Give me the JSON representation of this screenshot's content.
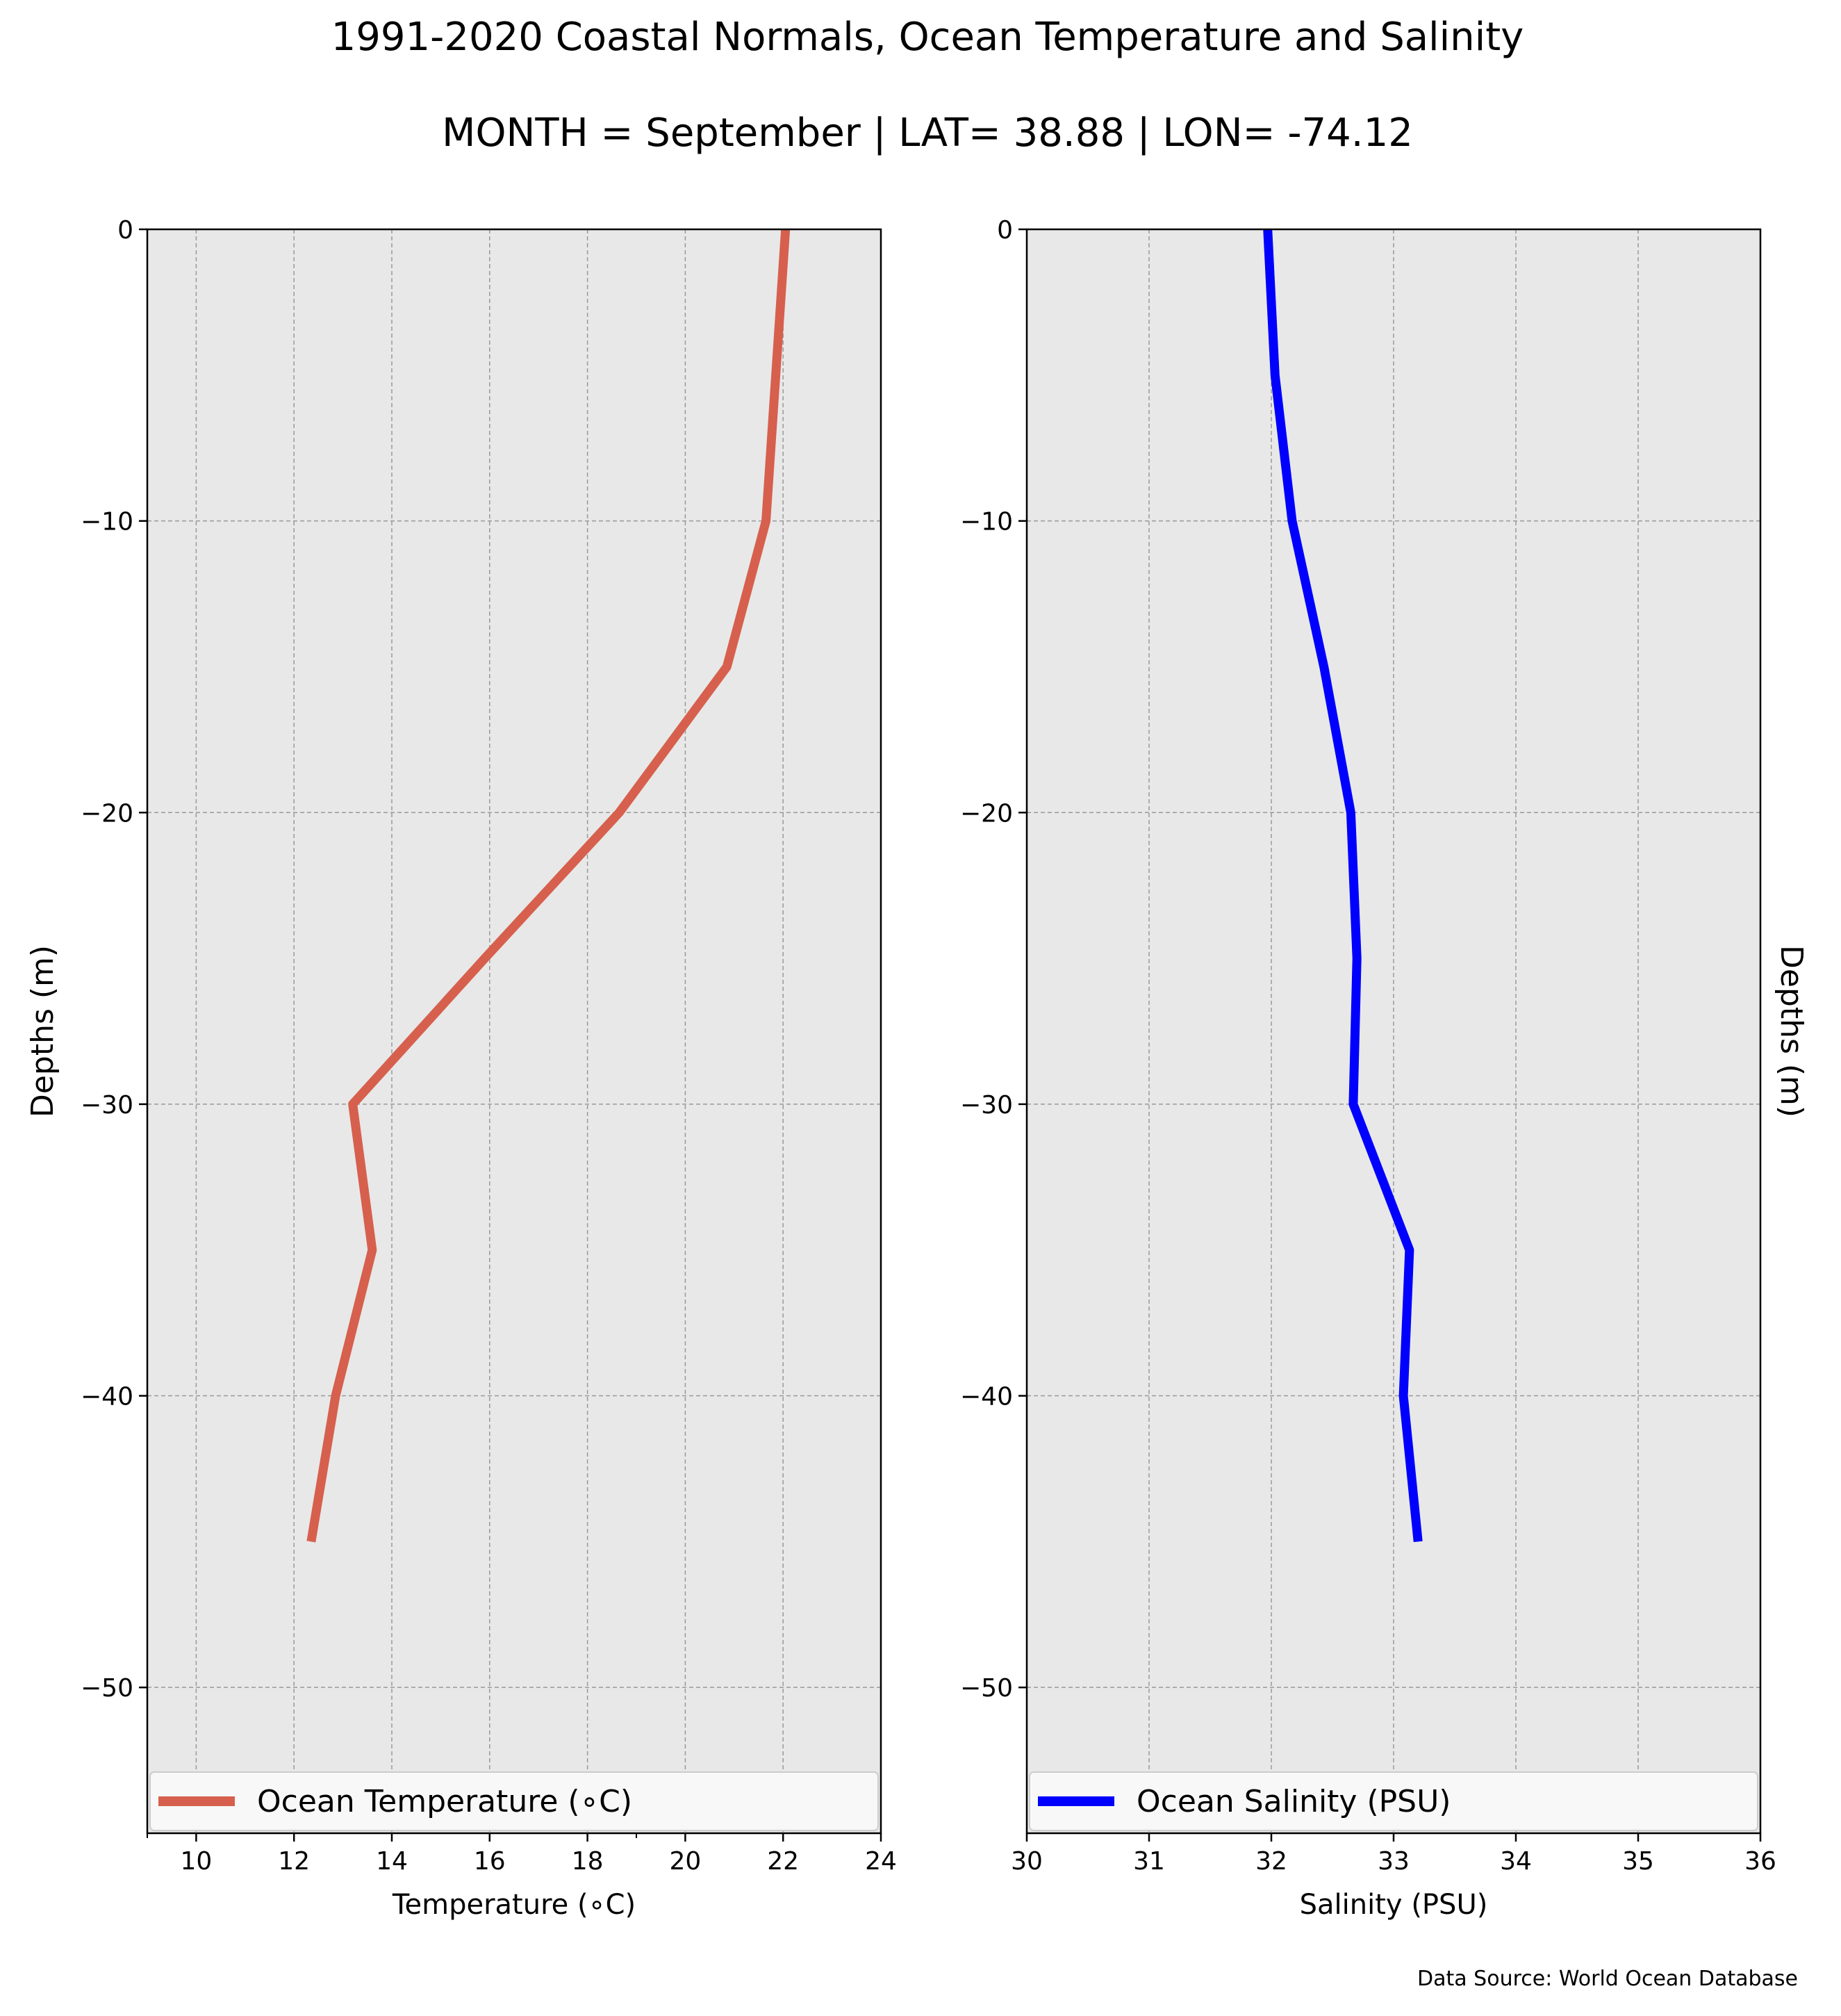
{
  "title": "1991-2020 Coastal Normals, Ocean Temperature and Salinity",
  "subtitle": "MONTH = September | LAT= 38.88 | LON= -74.12",
  "source_note": "Data Source: World Ocean Database",
  "colors": {
    "background": "#ffffff",
    "plot_bg": "#e8e8e8",
    "grid": "#999999",
    "temperature": "#d6604d",
    "salinity": "#0000ff"
  },
  "chart_data": [
    {
      "type": "line",
      "xlabel": "Temperature ($^\\circ$C)",
      "xlabel_display": "Temperature (∘C)",
      "ylabel": "Depths (m)",
      "xlim": [
        9,
        24
      ],
      "ylim": [
        -55,
        0
      ],
      "xticks": [
        10,
        12,
        14,
        16,
        18,
        20,
        22,
        24
      ],
      "xtick_labels": [
        "10",
        "12",
        "14",
        "16",
        "18",
        "20",
        "22",
        "24"
      ],
      "minor_xticks": [
        9,
        19
      ],
      "yticks": [
        0,
        -10,
        -20,
        -30,
        -40,
        -50
      ],
      "ytick_labels": [
        "0",
        "−10",
        "−20",
        "−30",
        "−40",
        "−50"
      ],
      "grid": true,
      "legend_position": "lower center",
      "series": [
        {
          "name": "Ocean Temperature (∘C)",
          "color": "#d6604d",
          "x": [
            22.05,
            21.85,
            21.65,
            20.85,
            18.65,
            15.9,
            13.2,
            13.6,
            12.85,
            12.35
          ],
          "y": [
            0,
            -5,
            -10,
            -15,
            -20,
            -25,
            -30,
            -35,
            -40,
            -45
          ]
        }
      ]
    },
    {
      "type": "line",
      "xlabel": "Salinity (PSU)",
      "ylabel": "Depths (m)",
      "xlim": [
        30,
        36
      ],
      "ylim": [
        -55,
        0
      ],
      "xticks": [
        30,
        31,
        32,
        33,
        34,
        35,
        36
      ],
      "xtick_labels": [
        "30",
        "31",
        "32",
        "33",
        "34",
        "35",
        "36"
      ],
      "yticks": [
        0,
        -10,
        -20,
        -30,
        -40,
        -50
      ],
      "ytick_labels": [
        "0",
        "−10",
        "−20",
        "−30",
        "−40",
        "−50"
      ],
      "grid": true,
      "legend_position": "lower center",
      "series": [
        {
          "name": "Ocean Salinity (PSU)",
          "color": "#0000ff",
          "x": [
            31.97,
            32.03,
            32.17,
            32.43,
            32.65,
            32.7,
            32.67,
            33.13,
            33.08,
            33.2
          ],
          "y": [
            0,
            -5,
            -10,
            -15,
            -20,
            -25,
            -30,
            -35,
            -40,
            -45
          ]
        }
      ]
    }
  ]
}
